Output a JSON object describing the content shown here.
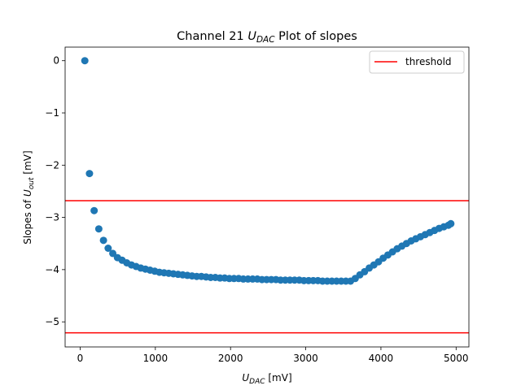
{
  "chart_data": {
    "type": "scatter",
    "title": {
      "prefix": "Channel 21 ",
      "var": "U",
      "sub": "DAC",
      "suffix": " Plot of slopes"
    },
    "xlabel": {
      "var": "U",
      "sub": "DAC",
      "suffix": " [mV]"
    },
    "ylabel": {
      "prefix": "Slopes of ",
      "var": "U",
      "sub": "out",
      "suffix": " [mV]"
    },
    "xlim": [
      -200,
      5170
    ],
    "ylim": [
      -5.48,
      0.26
    ],
    "xticks": [
      0,
      1000,
      2000,
      3000,
      4000,
      5000
    ],
    "yticks": [
      0,
      -1,
      -2,
      -3,
      -4,
      -5
    ],
    "xtick_labels": [
      "0",
      "1000",
      "2000",
      "3000",
      "4000",
      "5000"
    ],
    "ytick_labels": [
      "0",
      "−1",
      "−2",
      "−3",
      "−4",
      "−5"
    ],
    "legend": {
      "placement": "top-right",
      "entries": [
        "threshold"
      ]
    },
    "threshold_lines": [
      -2.68,
      -5.21
    ],
    "colors": {
      "points": "#1f77b4",
      "threshold": "#ff0000"
    },
    "x": [
      62,
      124,
      186,
      248,
      310,
      372,
      434,
      496,
      558,
      620,
      682,
      744,
      806,
      868,
      930,
      992,
      1054,
      1116,
      1178,
      1240,
      1302,
      1364,
      1426,
      1488,
      1550,
      1612,
      1674,
      1736,
      1798,
      1860,
      1922,
      1984,
      2046,
      2108,
      2170,
      2232,
      2294,
      2356,
      2418,
      2480,
      2542,
      2604,
      2666,
      2728,
      2790,
      2852,
      2914,
      2976,
      3038,
      3100,
      3162,
      3224,
      3286,
      3348,
      3410,
      3472,
      3534,
      3596,
      3658,
      3720,
      3782,
      3844,
      3906,
      3968,
      4030,
      4092,
      4154,
      4216,
      4278,
      4340,
      4402,
      4464,
      4526,
      4588,
      4650,
      4712,
      4774,
      4836,
      4898,
      4930
    ],
    "y": [
      0.0,
      -2.16,
      -2.87,
      -3.22,
      -3.44,
      -3.59,
      -3.69,
      -3.77,
      -3.82,
      -3.87,
      -3.91,
      -3.94,
      -3.97,
      -3.99,
      -4.01,
      -4.03,
      -4.05,
      -4.06,
      -4.07,
      -4.08,
      -4.09,
      -4.1,
      -4.11,
      -4.12,
      -4.13,
      -4.13,
      -4.14,
      -4.15,
      -4.15,
      -4.16,
      -4.16,
      -4.17,
      -4.17,
      -4.17,
      -4.18,
      -4.18,
      -4.18,
      -4.18,
      -4.19,
      -4.19,
      -4.19,
      -4.19,
      -4.2,
      -4.2,
      -4.2,
      -4.2,
      -4.2,
      -4.21,
      -4.21,
      -4.21,
      -4.21,
      -4.22,
      -4.22,
      -4.22,
      -4.22,
      -4.22,
      -4.22,
      -4.22,
      -4.17,
      -4.1,
      -4.04,
      -3.97,
      -3.91,
      -3.85,
      -3.78,
      -3.72,
      -3.66,
      -3.6,
      -3.55,
      -3.5,
      -3.45,
      -3.41,
      -3.37,
      -3.33,
      -3.29,
      -3.25,
      -3.21,
      -3.18,
      -3.15,
      -3.12
    ]
  }
}
